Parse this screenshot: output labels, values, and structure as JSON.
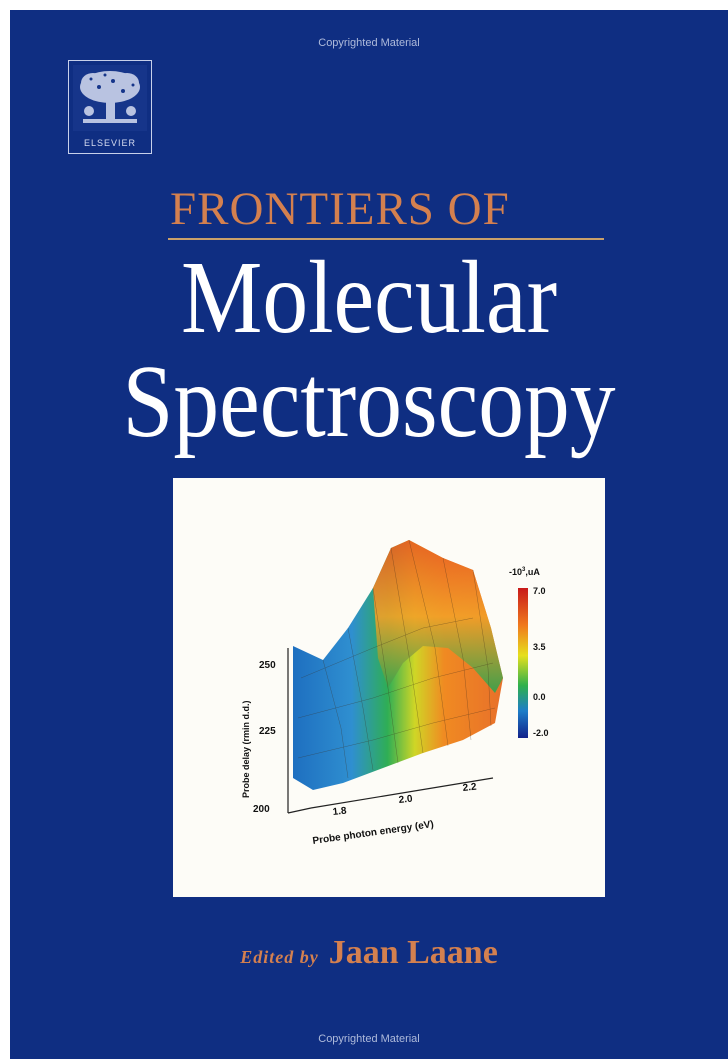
{
  "watermark": {
    "top": "Copyrighted Material",
    "bottom": "Copyrighted Material"
  },
  "publisher": {
    "name": "ELSEVIER"
  },
  "book": {
    "series_line": "FRONTIERS OF",
    "title_line1": "Molecular",
    "title_line2": "Spectroscopy",
    "edited_by": "Edited by",
    "editor": "Jaan Laane"
  },
  "figure": {
    "colorbar_title": "-10",
    "colorbar_superscript": "3",
    "colorbar_unit": ",uA",
    "colorbar_ticks": [
      "7.0",
      "3.5",
      "0.0",
      "-2.0"
    ],
    "x_ticks": [
      "1.8",
      "2.0",
      "2.2"
    ],
    "y_ticks": [
      "250",
      "225",
      "200"
    ],
    "xlabel": "Probe photon energy (eV)",
    "ylabel": "Probe delay (rmin d.d.)"
  },
  "colors": {
    "cover_blue": "#0f2e82",
    "accent_orange": "#d4804f",
    "figure_bg": "#fdfcf7"
  }
}
